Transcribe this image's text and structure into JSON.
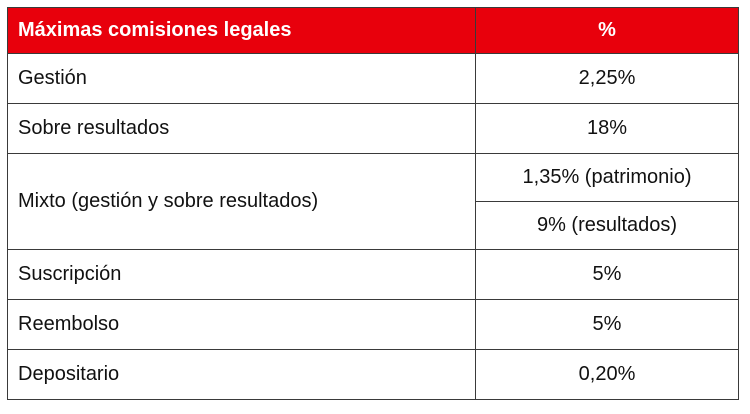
{
  "table": {
    "header": {
      "label": "Máximas comisiones legales",
      "value": "%"
    },
    "rows": [
      {
        "label": "Gestión",
        "value": "2,25%"
      },
      {
        "label": "Sobre resultados",
        "value": "18%"
      },
      {
        "label": "Mixto (gestión y sobre resultados)",
        "values": [
          "1,35% (patrimonio)",
          "9% (resultados)"
        ]
      },
      {
        "label": "Suscripción",
        "value": "5%"
      },
      {
        "label": "Reembolso",
        "value": "5%"
      },
      {
        "label": "Depositario",
        "value": "0,20%"
      }
    ],
    "colors": {
      "header_bg": "#e8000c",
      "header_text": "#ffffff",
      "border": "#3a3a3a"
    }
  }
}
